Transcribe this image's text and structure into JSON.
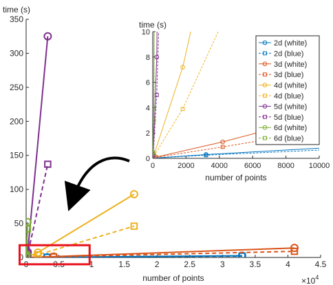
{
  "chart_data": [
    {
      "type": "line",
      "xlabel": "number of points",
      "ylabel": "time (s)",
      "xlim": [
        0,
        45000
      ],
      "ylim": [
        0,
        350
      ],
      "x_ticks": [
        0,
        5000,
        10000,
        15000,
        20000,
        25000,
        30000,
        35000,
        40000,
        45000
      ],
      "x_tick_labels": [
        "0",
        "0.5",
        "1",
        "1.5",
        "2",
        "2.5",
        "3",
        "3.5",
        "4",
        "4.5"
      ],
      "x_multiplier_label": "×10",
      "x_multiplier_exponent": "4",
      "y_ticks": [
        0,
        50,
        100,
        150,
        200,
        250,
        300,
        350
      ],
      "y_tick_labels": [
        "0",
        "50",
        "100",
        "150",
        "200",
        "250",
        "300",
        "350"
      ],
      "highlight_box": {
        "x_range": [
          -1000,
          9700
        ],
        "y_range": [
          -10,
          18
        ],
        "color": "#e8101a"
      },
      "series": [
        {
          "name": "2d (white)",
          "color": "#0072bd",
          "style": "solid",
          "marker": "circle",
          "x": [
            30,
            100,
            3200,
            33000
          ],
          "y": [
            0.01,
            0.02,
            0.3,
            2.5
          ]
        },
        {
          "name": "2d (blue)",
          "color": "#0072bd",
          "style": "dashed",
          "marker": "square",
          "x": [
            30,
            100,
            3200,
            33000
          ],
          "y": [
            0.01,
            0.02,
            0.25,
            2.0
          ]
        },
        {
          "name": "3d (white)",
          "color": "#d95319",
          "style": "solid",
          "marker": "circle",
          "x": [
            30,
            200,
            4200,
            41000
          ],
          "y": [
            0.05,
            0.1,
            1.3,
            14
          ]
        },
        {
          "name": "3d (blue)",
          "color": "#d95319",
          "style": "dashed",
          "marker": "square",
          "x": [
            30,
            200,
            4200,
            41000
          ],
          "y": [
            0.04,
            0.08,
            0.9,
            9
          ]
        },
        {
          "name": "4d (white)",
          "color": "#edb120",
          "style": "solid",
          "marker": "circle",
          "x": [
            80,
            1800,
            16500
          ],
          "y": [
            0.3,
            7.2,
            93
          ]
        },
        {
          "name": "4d (blue)",
          "color": "#edb120",
          "style": "dashed",
          "marker": "square",
          "x": [
            80,
            1800,
            16500
          ],
          "y": [
            0.2,
            3.9,
            46
          ]
        },
        {
          "name": "5d (white)",
          "color": "#7e2f8e",
          "style": "solid",
          "marker": "circle",
          "x": [
            30,
            240,
            3300
          ],
          "y": [
            0.3,
            8,
            325
          ]
        },
        {
          "name": "5d (blue)",
          "color": "#7e2f8e",
          "style": "dashed",
          "marker": "square",
          "x": [
            30,
            240,
            3300
          ],
          "y": [
            0.2,
            5,
            137
          ]
        },
        {
          "name": "6d (white)",
          "color": "#77ac30",
          "style": "solid",
          "marker": "circle",
          "x": [
            20,
            64,
            200
          ],
          "y": [
            0.5,
            4,
            52
          ]
        },
        {
          "name": "6d (blue)",
          "color": "#77ac30",
          "style": "dashed",
          "marker": "square",
          "x": [
            20,
            64,
            200
          ],
          "y": [
            0.4,
            3,
            42
          ]
        }
      ]
    },
    {
      "type": "line",
      "xlabel": "number of points",
      "ylabel": "time (s)",
      "xlim": [
        0,
        10000
      ],
      "ylim": [
        0,
        10
      ],
      "x_ticks": [
        0,
        2000,
        4000,
        6000,
        8000,
        10000
      ],
      "x_tick_labels": [
        "0",
        "2000",
        "4000",
        "6000",
        "8000",
        "10000"
      ],
      "y_ticks": [
        0,
        2,
        4,
        6,
        8,
        10
      ],
      "y_tick_labels": [
        "0",
        "2",
        "4",
        "6",
        "8",
        "10"
      ],
      "legend_position": "top-right"
    }
  ]
}
